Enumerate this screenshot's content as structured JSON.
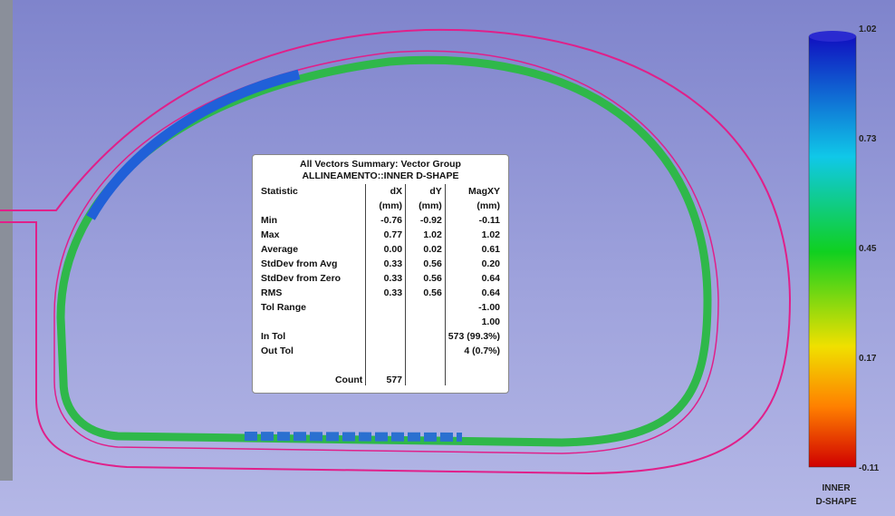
{
  "summary": {
    "title": "All Vectors Summary: Vector Group",
    "subtitle": "ALLINEAMENTO::INNER D-SHAPE",
    "header": [
      "Statistic",
      "dX",
      "dY",
      "MagXY"
    ],
    "units": [
      "(mm)",
      "(mm)",
      "(mm)"
    ],
    "rows": [
      {
        "label": "Min",
        "dx": "-0.76",
        "dy": "-0.92",
        "mag": "-0.11"
      },
      {
        "label": "Max",
        "dx": "0.77",
        "dy": "1.02",
        "mag": "1.02"
      },
      {
        "label": "Average",
        "dx": "0.00",
        "dy": "0.02",
        "mag": "0.61"
      },
      {
        "label": "StdDev from Avg",
        "dx": "0.33",
        "dy": "0.56",
        "mag": "0.20"
      },
      {
        "label": "StdDev from Zero",
        "dx": "0.33",
        "dy": "0.56",
        "mag": "0.64"
      },
      {
        "label": "RMS",
        "dx": "0.33",
        "dy": "0.56",
        "mag": "0.64"
      },
      {
        "label": "Tol Range",
        "mag": "-1.00"
      },
      {
        "mag": "1.00"
      },
      {
        "label": "In Tol",
        "mag": "573 (99.3%)"
      },
      {
        "label": "Out Tol",
        "mag": "4 (0.7%)"
      },
      {
        "label": "Count",
        "dx": "577"
      }
    ]
  },
  "legend": {
    "ticks": [
      "1.02",
      "0.73",
      "0.45",
      "0.17",
      "-0.11"
    ],
    "title": [
      "INNER",
      "D-SHAPE"
    ]
  }
}
